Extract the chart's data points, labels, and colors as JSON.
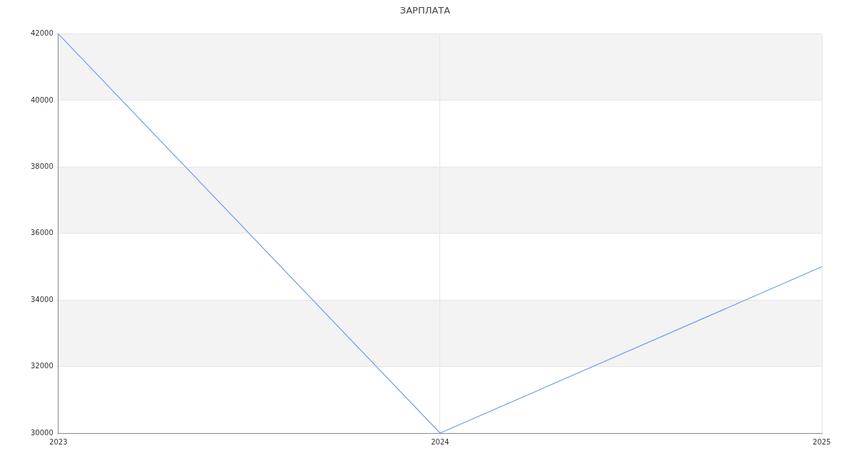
{
  "chart_data": {
    "type": "line",
    "title": "ЗАРПЛАТА",
    "categories": [
      "2023",
      "2024",
      "2025"
    ],
    "series": [
      {
        "color": "#6f9af0",
        "values": [
          42000,
          30000,
          35000
        ]
      }
    ],
    "ylim": [
      30000,
      42000
    ],
    "yticks": [
      30000,
      32000,
      34000,
      36000,
      38000,
      40000,
      42000
    ],
    "grid": true,
    "marker": "none",
    "line_style": "solid"
  }
}
